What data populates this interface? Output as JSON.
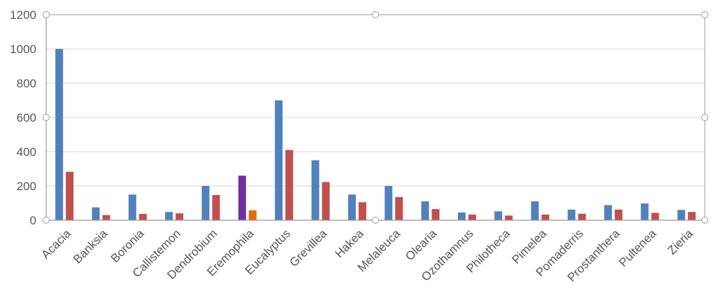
{
  "chart_data": {
    "type": "bar",
    "categories": [
      "Acacia",
      "Banksia",
      "Boronia",
      "Callistemon",
      "Dendrobium",
      "Eremophila",
      "Eucalyptus",
      "Grevillea",
      "Hakea",
      "Melaleuca",
      "Olearia",
      "Ozothamnus",
      "Philotheca",
      "Pimelea",
      "Pomaderris",
      "Prostanthera",
      "Pultenea",
      "Zieria"
    ],
    "series": [
      {
        "values": [
          1000,
          75,
          150,
          48,
          200,
          260,
          700,
          350,
          150,
          200,
          110,
          45,
          52,
          110,
          62,
          88,
          98,
          60
        ]
      },
      {
        "values": [
          283,
          30,
          37,
          40,
          147,
          58,
          410,
          223,
          105,
          135,
          65,
          33,
          27,
          33,
          38,
          62,
          43,
          48
        ]
      }
    ],
    "highlight": {
      "category": "Eremophila",
      "colors": [
        "#7030a0",
        "#e36c0a"
      ]
    },
    "colors": [
      "#4f81bd",
      "#c0504d"
    ],
    "ylim": [
      0,
      1200
    ],
    "yticks": [
      0,
      200,
      400,
      600,
      800,
      1000,
      1200
    ],
    "grid": true,
    "legend": "none",
    "selected": true
  }
}
